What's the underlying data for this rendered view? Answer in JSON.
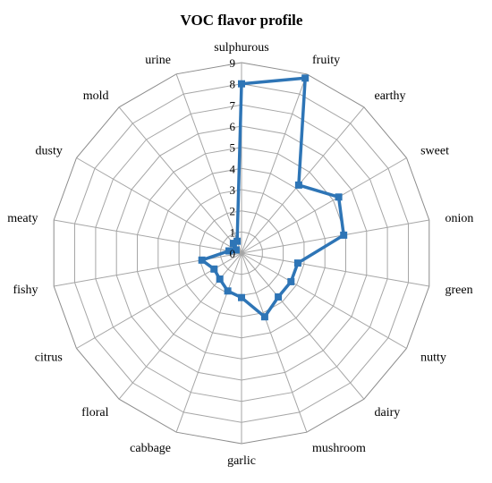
{
  "chart_data": {
    "type": "radar",
    "title": "VOC flavor profile",
    "axes": [
      "sulphurous",
      "fruity",
      "earthy",
      "sweet",
      "onion",
      "green",
      "nutty",
      "dairy",
      "mushroom",
      "garlic",
      "cabbage",
      "floral",
      "citrus",
      "fishy",
      "meaty",
      "dusty",
      "mold",
      "urine"
    ],
    "series": [
      {
        "values": [
          8,
          8.8,
          4.2,
          5.3,
          4.9,
          2.7,
          2.7,
          2.7,
          3.2,
          2.1,
          1.9,
          1.6,
          1.5,
          1.9,
          0.6,
          0.3,
          0.6,
          0.6
        ],
        "color": "#2e75b6"
      }
    ],
    "r_ticks": [
      "0",
      "1",
      "2",
      "3",
      "4",
      "5",
      "6",
      "7",
      "8",
      "9"
    ],
    "r_range": [
      0,
      9
    ],
    "grid": true,
    "legend": "none"
  }
}
